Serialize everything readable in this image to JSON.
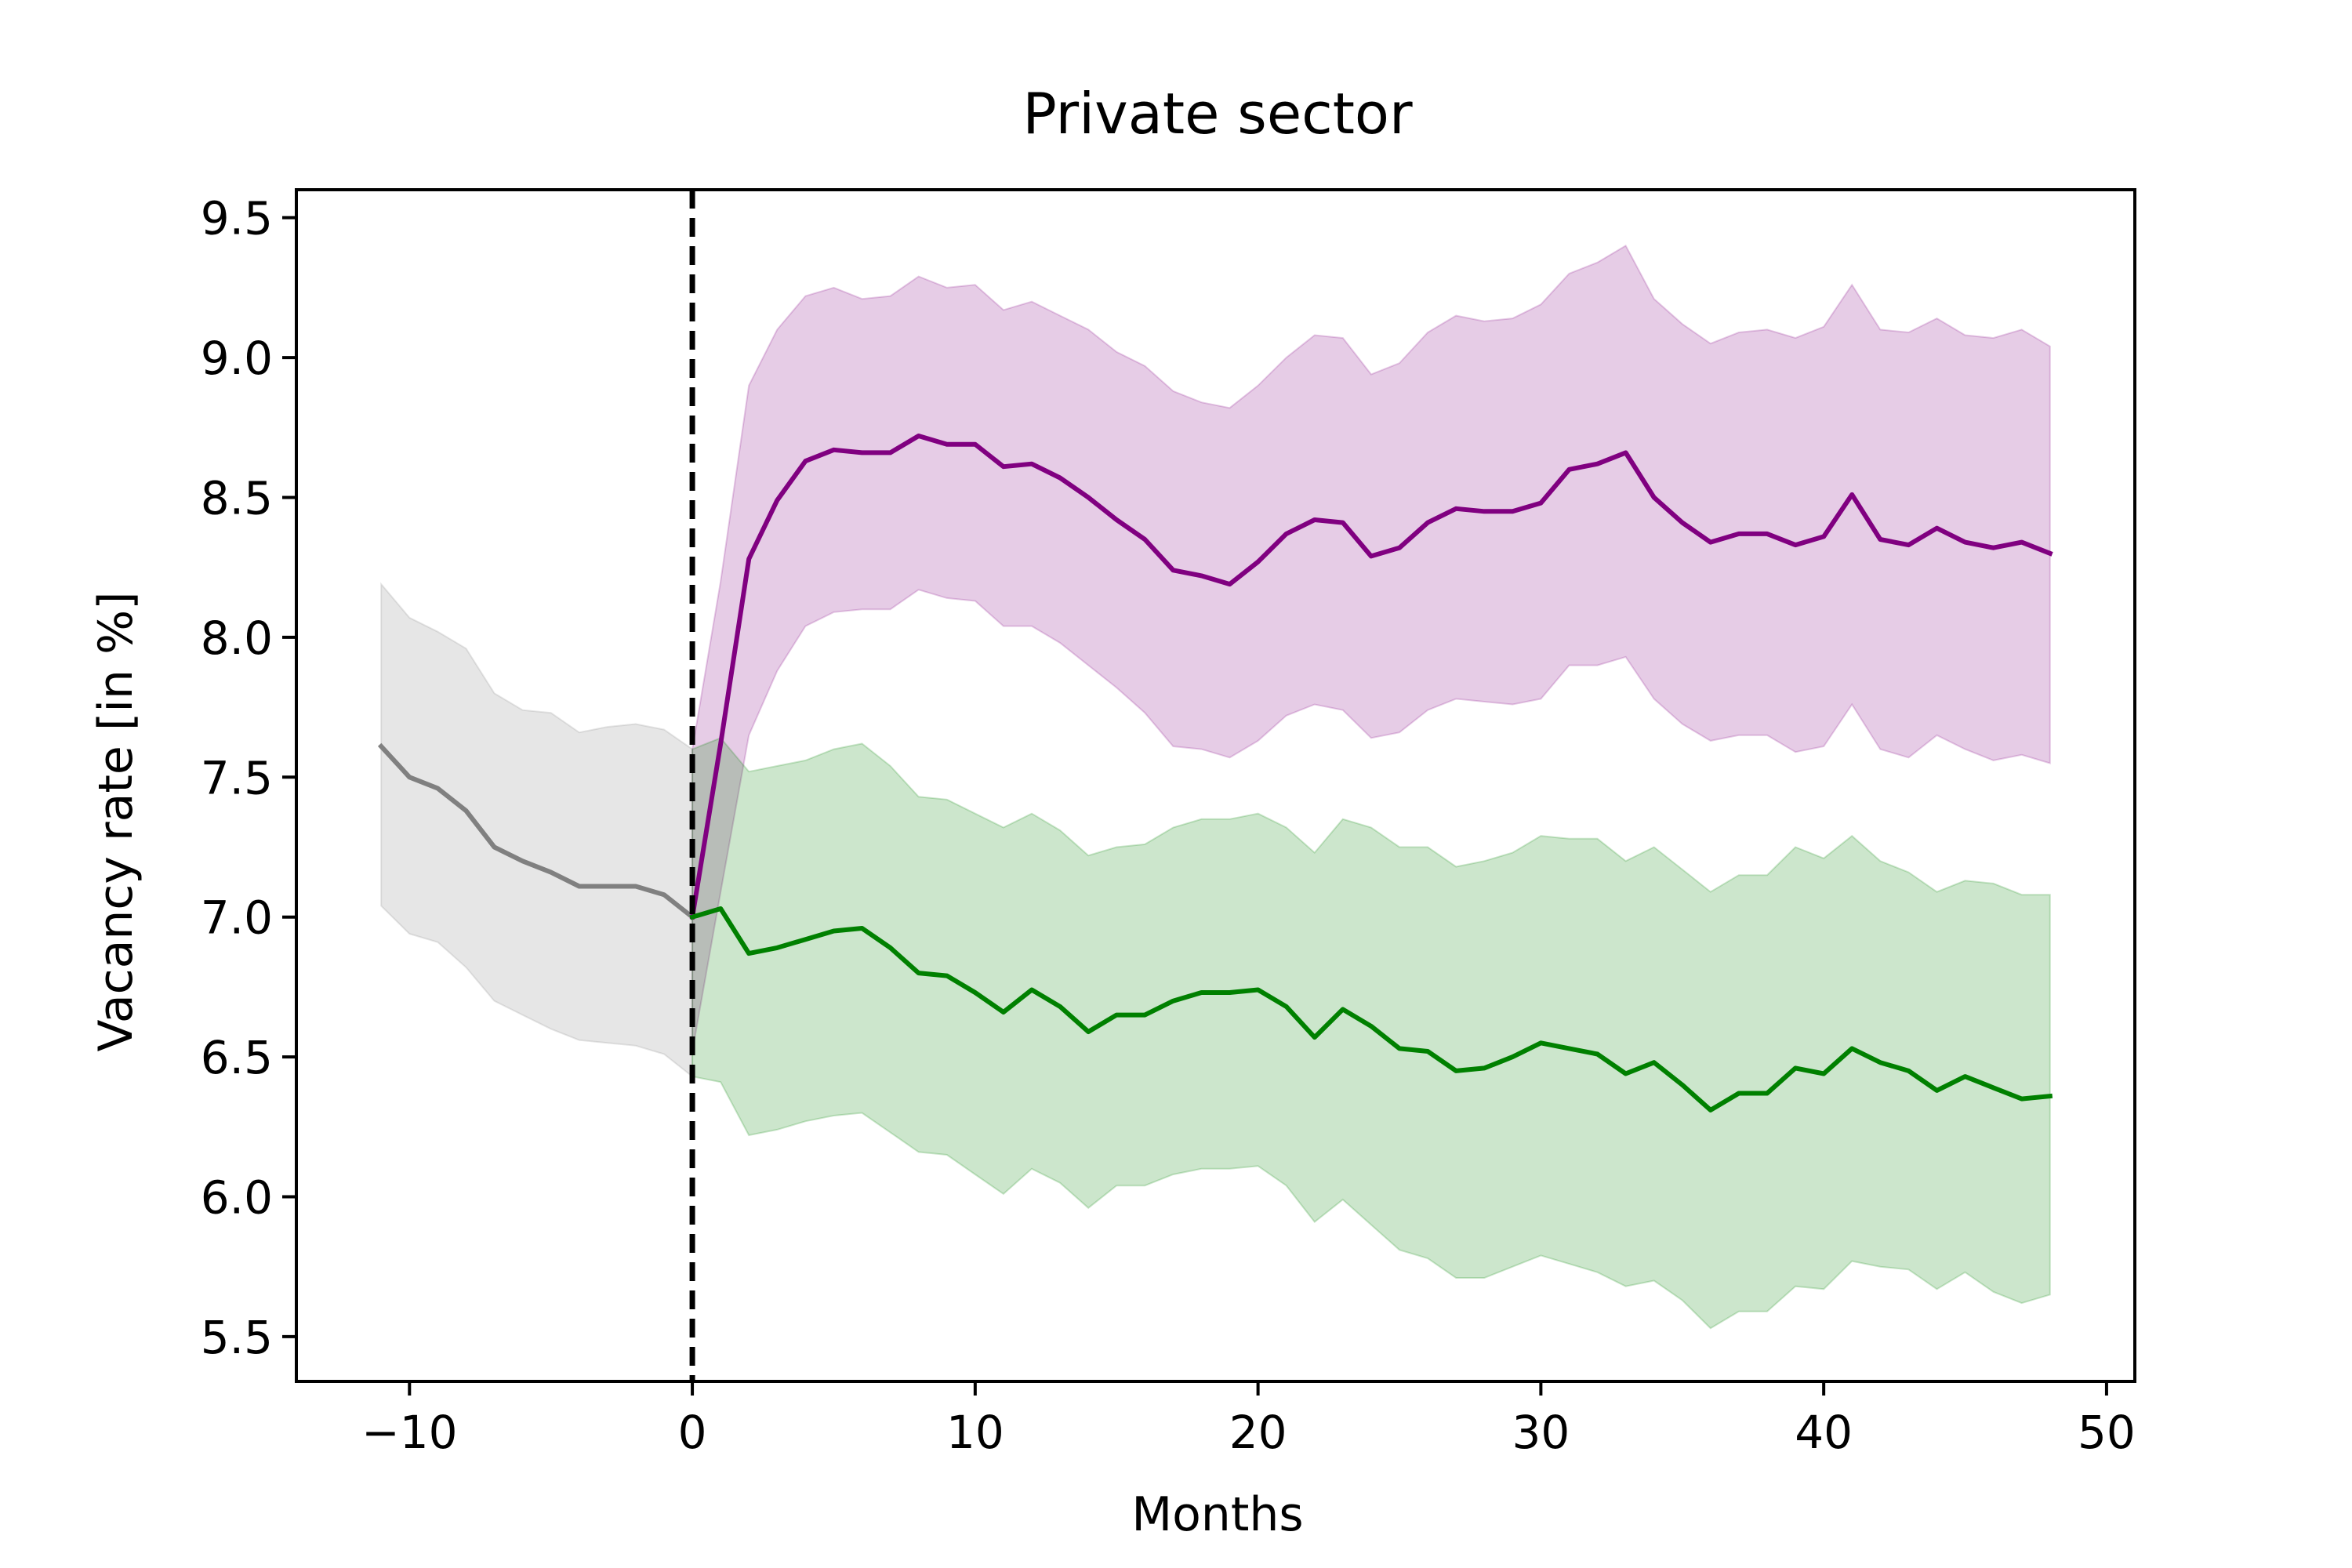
{
  "chart_data": {
    "type": "line",
    "title": "Private sector",
    "xlabel": "Months",
    "ylabel": "Vacancy rate [in %]",
    "xlim": [
      -14,
      51
    ],
    "ylim": [
      5.34,
      9.6
    ],
    "xticks": [
      -10,
      0,
      10,
      20,
      30,
      40,
      50
    ],
    "yticks": [
      5.5,
      6.0,
      6.5,
      7.0,
      7.5,
      8.0,
      8.5,
      9.0,
      9.5
    ],
    "xtick_labels": [
      "−10",
      "0",
      "10",
      "20",
      "30",
      "40",
      "50"
    ],
    "ytick_labels": [
      "5.5",
      "6.0",
      "6.5",
      "7.0",
      "7.5",
      "8.0",
      "8.5",
      "9.0",
      "9.5"
    ],
    "grid": false,
    "vline": {
      "x": 0,
      "style": "dashed",
      "color": "#000000"
    },
    "series": [
      {
        "color": "#808080",
        "x": [
          -11,
          -10,
          -9,
          -8,
          -7,
          -6,
          -5,
          -4,
          -3,
          -2,
          -1,
          0
        ],
        "values": [
          7.61,
          7.5,
          7.46,
          7.38,
          7.25,
          7.2,
          7.16,
          7.11,
          7.11,
          7.11,
          7.08,
          7.0
        ],
        "lower": [
          7.04,
          6.94,
          6.91,
          6.82,
          6.7,
          6.65,
          6.6,
          6.56,
          6.55,
          6.54,
          6.51,
          6.43
        ],
        "upper": [
          8.19,
          8.07,
          8.02,
          7.96,
          7.8,
          7.74,
          7.73,
          7.66,
          7.68,
          7.69,
          7.67,
          7.6
        ]
      },
      {
        "color": "#800080",
        "x": [
          0,
          1,
          2,
          3,
          4,
          5,
          6,
          7,
          8,
          9,
          10,
          11,
          12,
          13,
          14,
          15,
          16,
          17,
          18,
          19,
          20,
          21,
          22,
          23,
          24,
          25,
          26,
          27,
          28,
          29,
          30,
          31,
          32,
          33,
          34,
          35,
          36,
          37,
          38,
          39,
          40,
          41,
          42,
          43,
          44,
          45,
          46,
          47,
          48
        ],
        "values": [
          7.0,
          7.62,
          8.28,
          8.49,
          8.63,
          8.67,
          8.66,
          8.66,
          8.72,
          8.69,
          8.69,
          8.61,
          8.62,
          8.57,
          8.5,
          8.42,
          8.35,
          8.24,
          8.22,
          8.19,
          8.27,
          8.37,
          8.42,
          8.41,
          8.29,
          8.32,
          8.41,
          8.46,
          8.45,
          8.45,
          8.48,
          8.6,
          8.62,
          8.66,
          8.5,
          8.41,
          8.34,
          8.37,
          8.37,
          8.33,
          8.36,
          8.51,
          8.35,
          8.33,
          8.39,
          8.34,
          8.32,
          8.34,
          8.3
        ],
        "lower": [
          6.52,
          7.09,
          7.65,
          7.88,
          8.04,
          8.09,
          8.1,
          8.1,
          8.17,
          8.14,
          8.13,
          8.04,
          8.04,
          7.98,
          7.9,
          7.82,
          7.73,
          7.61,
          7.6,
          7.57,
          7.63,
          7.72,
          7.76,
          7.74,
          7.64,
          7.66,
          7.74,
          7.78,
          7.77,
          7.76,
          7.78,
          7.9,
          7.9,
          7.93,
          7.78,
          7.69,
          7.63,
          7.65,
          7.65,
          7.59,
          7.61,
          7.76,
          7.6,
          7.57,
          7.65,
          7.6,
          7.56,
          7.58,
          7.55
        ],
        "upper": [
          7.6,
          8.2,
          8.9,
          9.1,
          9.22,
          9.25,
          9.21,
          9.22,
          9.29,
          9.25,
          9.26,
          9.17,
          9.2,
          9.15,
          9.1,
          9.02,
          8.97,
          8.88,
          8.84,
          8.82,
          8.9,
          9.0,
          9.08,
          9.07,
          8.94,
          8.98,
          9.09,
          9.15,
          9.13,
          9.14,
          9.19,
          9.3,
          9.34,
          9.4,
          9.21,
          9.12,
          9.05,
          9.09,
          9.1,
          9.07,
          9.11,
          9.26,
          9.1,
          9.09,
          9.14,
          9.08,
          9.07,
          9.1,
          9.04
        ]
      },
      {
        "color": "#008000",
        "x": [
          0,
          1,
          2,
          3,
          4,
          5,
          6,
          7,
          8,
          9,
          10,
          11,
          12,
          13,
          14,
          15,
          16,
          17,
          18,
          19,
          20,
          21,
          22,
          23,
          24,
          25,
          26,
          27,
          28,
          29,
          30,
          31,
          32,
          33,
          34,
          35,
          36,
          37,
          38,
          39,
          40,
          41,
          42,
          43,
          44,
          45,
          46,
          47,
          48
        ],
        "values": [
          7.0,
          7.03,
          6.87,
          6.89,
          6.92,
          6.95,
          6.96,
          6.89,
          6.8,
          6.79,
          6.73,
          6.66,
          6.74,
          6.68,
          6.59,
          6.65,
          6.65,
          6.7,
          6.73,
          6.73,
          6.74,
          6.68,
          6.57,
          6.67,
          6.61,
          6.53,
          6.52,
          6.45,
          6.46,
          6.5,
          6.55,
          6.53,
          6.51,
          6.44,
          6.48,
          6.4,
          6.31,
          6.37,
          6.37,
          6.46,
          6.44,
          6.53,
          6.48,
          6.45,
          6.38,
          6.43,
          6.39,
          6.35,
          6.36
        ],
        "lower": [
          6.43,
          6.41,
          6.22,
          6.24,
          6.27,
          6.29,
          6.3,
          6.23,
          6.16,
          6.15,
          6.08,
          6.01,
          6.1,
          6.05,
          5.96,
          6.04,
          6.04,
          6.08,
          6.1,
          6.1,
          6.11,
          6.04,
          5.91,
          5.99,
          5.9,
          5.81,
          5.78,
          5.71,
          5.71,
          5.75,
          5.79,
          5.76,
          5.73,
          5.68,
          5.7,
          5.63,
          5.53,
          5.59,
          5.59,
          5.68,
          5.67,
          5.77,
          5.75,
          5.74,
          5.67,
          5.73,
          5.66,
          5.62,
          5.65
        ],
        "upper": [
          7.6,
          7.64,
          7.52,
          7.54,
          7.56,
          7.6,
          7.62,
          7.54,
          7.43,
          7.42,
          7.37,
          7.32,
          7.37,
          7.31,
          7.22,
          7.25,
          7.26,
          7.32,
          7.35,
          7.35,
          7.37,
          7.32,
          7.23,
          7.35,
          7.32,
          7.25,
          7.25,
          7.18,
          7.2,
          7.23,
          7.29,
          7.28,
          7.28,
          7.2,
          7.25,
          7.17,
          7.09,
          7.15,
          7.15,
          7.25,
          7.21,
          7.29,
          7.2,
          7.16,
          7.09,
          7.13,
          7.12,
          7.08,
          7.08
        ]
      }
    ]
  }
}
